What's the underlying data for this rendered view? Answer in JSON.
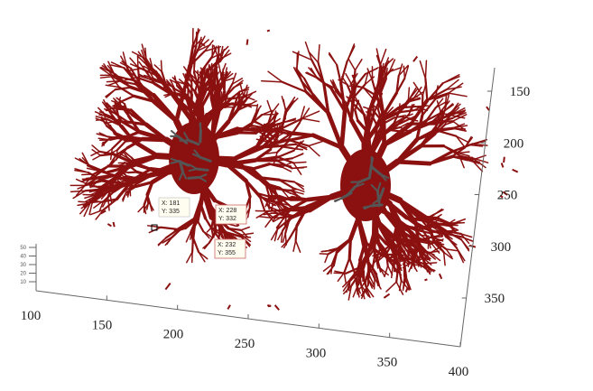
{
  "chart_data": {
    "type": "3d-surface",
    "x_ticks": [
      "100",
      "150",
      "200",
      "250",
      "300",
      "350",
      "400"
    ],
    "y_ticks": [
      "150",
      "200",
      "250",
      "300",
      "350"
    ],
    "z_ticks": [
      "10",
      "20",
      "30",
      "40",
      "50"
    ],
    "xlim": [
      100,
      400
    ],
    "ylim": [
      150,
      350
    ],
    "zlim": [
      10,
      50
    ],
    "colors": {
      "vessels": "#8b1111",
      "secondary": "#555555"
    },
    "datatips": [
      {
        "x_label": "X: 181",
        "y_label": "Y: 335"
      },
      {
        "x_label": "X: 228",
        "y_label": "Y: 332"
      },
      {
        "x_label": "X: 232",
        "y_label": "Y: 355"
      }
    ]
  }
}
